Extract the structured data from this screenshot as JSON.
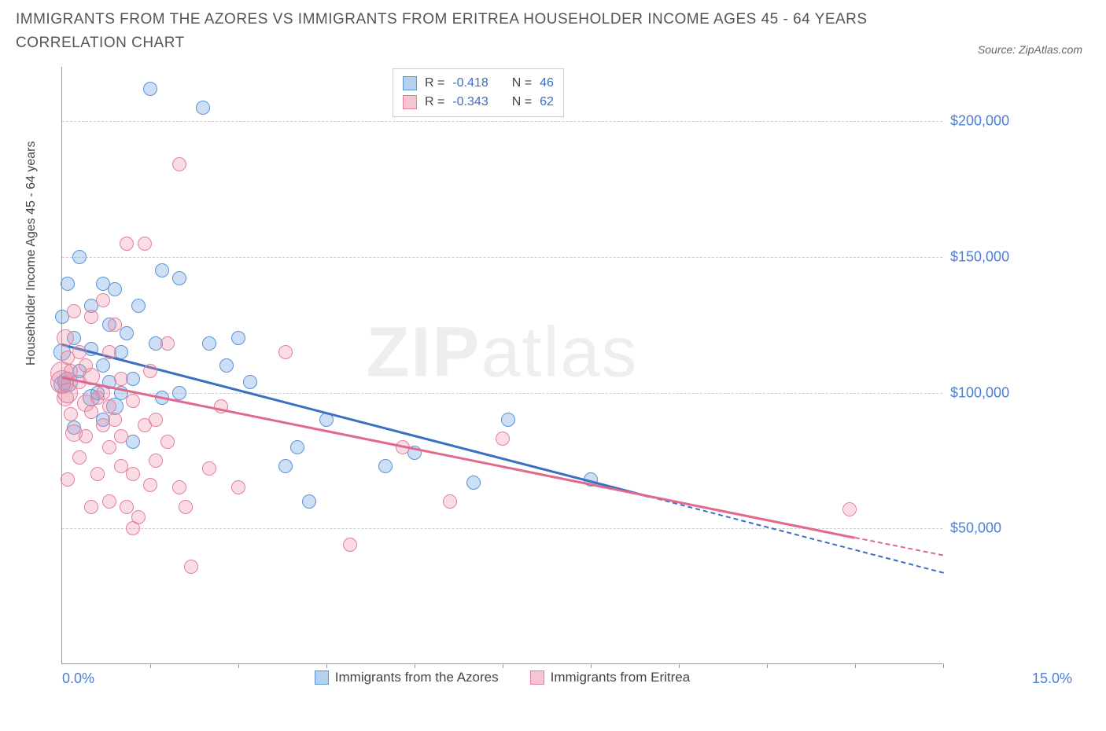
{
  "title": "IMMIGRANTS FROM THE AZORES VS IMMIGRANTS FROM ERITREA HOUSEHOLDER INCOME AGES 45 - 64 YEARS CORRELATION CHART",
  "source": "Source: ZipAtlas.com",
  "ylabel": "Householder Income Ages 45 - 64 years",
  "watermark_bold": "ZIP",
  "watermark_light": "atlas",
  "chart": {
    "type": "scatter",
    "xlim": [
      0,
      15
    ],
    "ylim": [
      0,
      220000
    ],
    "xtick_left": "0.0%",
    "xtick_right": "15.0%",
    "xticks_minor": [
      1.5,
      3.0,
      4.5,
      6.0,
      7.5,
      9.0,
      10.5,
      12.0,
      13.5,
      15.0
    ],
    "yticks": [
      {
        "v": 50000,
        "label": "$50,000"
      },
      {
        "v": 100000,
        "label": "$100,000"
      },
      {
        "v": 150000,
        "label": "$150,000"
      },
      {
        "v": 200000,
        "label": "$200,000"
      }
    ],
    "grid_color": "#cccccc",
    "background_color": "#ffffff",
    "series": [
      {
        "name": "Immigrants from the Azores",
        "color_fill": "rgba(109,163,226,0.35)",
        "color_stroke": "#5a94d6",
        "r_value": "-0.418",
        "n_value": "46",
        "marker_radius": 9,
        "trend": {
          "x1": 0.0,
          "y1": 118000,
          "x2": 10.0,
          "y2": 62000,
          "dash_x2": 15.0,
          "dash_y2": 34000,
          "color": "#3b6fc4"
        },
        "points": [
          {
            "x": 0.0,
            "y": 103000,
            "r": 11
          },
          {
            "x": 0.0,
            "y": 128000,
            "r": 9
          },
          {
            "x": 0.0,
            "y": 115000,
            "r": 11
          },
          {
            "x": 0.1,
            "y": 140000,
            "r": 9
          },
          {
            "x": 0.1,
            "y": 104000,
            "r": 13
          },
          {
            "x": 0.2,
            "y": 120000,
            "r": 9
          },
          {
            "x": 0.2,
            "y": 87000,
            "r": 9
          },
          {
            "x": 0.3,
            "y": 150000,
            "r": 9
          },
          {
            "x": 0.3,
            "y": 108000,
            "r": 9
          },
          {
            "x": 0.5,
            "y": 132000,
            "r": 9
          },
          {
            "x": 0.5,
            "y": 98000,
            "r": 11
          },
          {
            "x": 0.5,
            "y": 116000,
            "r": 9
          },
          {
            "x": 0.6,
            "y": 100000,
            "r": 9
          },
          {
            "x": 0.7,
            "y": 140000,
            "r": 9
          },
          {
            "x": 0.7,
            "y": 110000,
            "r": 9
          },
          {
            "x": 0.7,
            "y": 90000,
            "r": 9
          },
          {
            "x": 0.8,
            "y": 125000,
            "r": 9
          },
          {
            "x": 0.8,
            "y": 104000,
            "r": 9
          },
          {
            "x": 0.9,
            "y": 138000,
            "r": 9
          },
          {
            "x": 0.9,
            "y": 95000,
            "r": 11
          },
          {
            "x": 1.0,
            "y": 115000,
            "r": 9
          },
          {
            "x": 1.0,
            "y": 100000,
            "r": 9
          },
          {
            "x": 1.1,
            "y": 122000,
            "r": 9
          },
          {
            "x": 1.2,
            "y": 105000,
            "r": 9
          },
          {
            "x": 1.2,
            "y": 82000,
            "r": 9
          },
          {
            "x": 1.3,
            "y": 132000,
            "r": 9
          },
          {
            "x": 1.5,
            "y": 212000,
            "r": 9
          },
          {
            "x": 1.6,
            "y": 118000,
            "r": 9
          },
          {
            "x": 1.7,
            "y": 145000,
            "r": 9
          },
          {
            "x": 1.7,
            "y": 98000,
            "r": 9
          },
          {
            "x": 2.0,
            "y": 142000,
            "r": 9
          },
          {
            "x": 2.0,
            "y": 100000,
            "r": 9
          },
          {
            "x": 2.4,
            "y": 205000,
            "r": 9
          },
          {
            "x": 2.5,
            "y": 118000,
            "r": 9
          },
          {
            "x": 2.8,
            "y": 110000,
            "r": 9
          },
          {
            "x": 3.0,
            "y": 120000,
            "r": 9
          },
          {
            "x": 3.2,
            "y": 104000,
            "r": 9
          },
          {
            "x": 3.8,
            "y": 73000,
            "r": 9
          },
          {
            "x": 4.0,
            "y": 80000,
            "r": 9
          },
          {
            "x": 4.2,
            "y": 60000,
            "r": 9
          },
          {
            "x": 4.5,
            "y": 90000,
            "r": 9
          },
          {
            "x": 5.5,
            "y": 73000,
            "r": 9
          },
          {
            "x": 6.0,
            "y": 78000,
            "r": 9
          },
          {
            "x": 7.0,
            "y": 67000,
            "r": 9
          },
          {
            "x": 7.6,
            "y": 90000,
            "r": 9
          },
          {
            "x": 9.0,
            "y": 68000,
            "r": 9
          }
        ]
      },
      {
        "name": "Immigrants from Eritrea",
        "color_fill": "rgba(238,140,165,0.3)",
        "color_stroke": "#e57f9b",
        "r_value": "-0.343",
        "n_value": "62",
        "marker_radius": 9,
        "trend": {
          "x1": 0.0,
          "y1": 106000,
          "x2": 13.5,
          "y2": 47000,
          "dash_x2": 15.0,
          "dash_y2": 40500,
          "color": "#e06a8c"
        },
        "points": [
          {
            "x": 0.0,
            "y": 107000,
            "r": 15
          },
          {
            "x": 0.0,
            "y": 104000,
            "r": 15
          },
          {
            "x": 0.05,
            "y": 120000,
            "r": 11
          },
          {
            "x": 0.05,
            "y": 98000,
            "r": 11
          },
          {
            "x": 0.1,
            "y": 113000,
            "r": 9
          },
          {
            "x": 0.1,
            "y": 100000,
            "r": 13
          },
          {
            "x": 0.1,
            "y": 68000,
            "r": 9
          },
          {
            "x": 0.15,
            "y": 108000,
            "r": 9
          },
          {
            "x": 0.15,
            "y": 92000,
            "r": 9
          },
          {
            "x": 0.2,
            "y": 130000,
            "r": 9
          },
          {
            "x": 0.2,
            "y": 85000,
            "r": 11
          },
          {
            "x": 0.3,
            "y": 115000,
            "r": 9
          },
          {
            "x": 0.3,
            "y": 104000,
            "r": 9
          },
          {
            "x": 0.3,
            "y": 76000,
            "r": 9
          },
          {
            "x": 0.4,
            "y": 110000,
            "r": 9
          },
          {
            "x": 0.4,
            "y": 96000,
            "r": 11
          },
          {
            "x": 0.4,
            "y": 84000,
            "r": 9
          },
          {
            "x": 0.5,
            "y": 128000,
            "r": 9
          },
          {
            "x": 0.5,
            "y": 106000,
            "r": 11
          },
          {
            "x": 0.5,
            "y": 93000,
            "r": 9
          },
          {
            "x": 0.5,
            "y": 58000,
            "r": 9
          },
          {
            "x": 0.6,
            "y": 98000,
            "r": 9
          },
          {
            "x": 0.6,
            "y": 70000,
            "r": 9
          },
          {
            "x": 0.7,
            "y": 134000,
            "r": 9
          },
          {
            "x": 0.7,
            "y": 100000,
            "r": 9
          },
          {
            "x": 0.7,
            "y": 88000,
            "r": 9
          },
          {
            "x": 0.8,
            "y": 115000,
            "r": 9
          },
          {
            "x": 0.8,
            "y": 95000,
            "r": 9
          },
          {
            "x": 0.8,
            "y": 80000,
            "r": 9
          },
          {
            "x": 0.8,
            "y": 60000,
            "r": 9
          },
          {
            "x": 0.9,
            "y": 125000,
            "r": 9
          },
          {
            "x": 0.9,
            "y": 90000,
            "r": 9
          },
          {
            "x": 1.0,
            "y": 105000,
            "r": 9
          },
          {
            "x": 1.0,
            "y": 84000,
            "r": 9
          },
          {
            "x": 1.0,
            "y": 73000,
            "r": 9
          },
          {
            "x": 1.1,
            "y": 155000,
            "r": 9
          },
          {
            "x": 1.1,
            "y": 58000,
            "r": 9
          },
          {
            "x": 1.2,
            "y": 97000,
            "r": 9
          },
          {
            "x": 1.2,
            "y": 70000,
            "r": 9
          },
          {
            "x": 1.2,
            "y": 50000,
            "r": 9
          },
          {
            "x": 1.3,
            "y": 54000,
            "r": 9
          },
          {
            "x": 1.4,
            "y": 155000,
            "r": 9
          },
          {
            "x": 1.4,
            "y": 88000,
            "r": 9
          },
          {
            "x": 1.5,
            "y": 108000,
            "r": 9
          },
          {
            "x": 1.5,
            "y": 66000,
            "r": 9
          },
          {
            "x": 1.6,
            "y": 90000,
            "r": 9
          },
          {
            "x": 1.6,
            "y": 75000,
            "r": 9
          },
          {
            "x": 1.8,
            "y": 118000,
            "r": 9
          },
          {
            "x": 1.8,
            "y": 82000,
            "r": 9
          },
          {
            "x": 2.0,
            "y": 184000,
            "r": 9
          },
          {
            "x": 2.0,
            "y": 65000,
            "r": 9
          },
          {
            "x": 2.1,
            "y": 58000,
            "r": 9
          },
          {
            "x": 2.2,
            "y": 36000,
            "r": 9
          },
          {
            "x": 2.5,
            "y": 72000,
            "r": 9
          },
          {
            "x": 2.7,
            "y": 95000,
            "r": 9
          },
          {
            "x": 3.0,
            "y": 65000,
            "r": 9
          },
          {
            "x": 3.8,
            "y": 115000,
            "r": 9
          },
          {
            "x": 4.9,
            "y": 44000,
            "r": 9
          },
          {
            "x": 5.8,
            "y": 80000,
            "r": 9
          },
          {
            "x": 6.6,
            "y": 60000,
            "r": 9
          },
          {
            "x": 7.5,
            "y": 83000,
            "r": 9
          },
          {
            "x": 13.4,
            "y": 57000,
            "r": 9
          }
        ]
      }
    ]
  },
  "legend_bottom": [
    {
      "swatch": "blue",
      "label": "Immigrants from the Azores"
    },
    {
      "swatch": "pink",
      "label": "Immigrants from Eritrea"
    }
  ]
}
